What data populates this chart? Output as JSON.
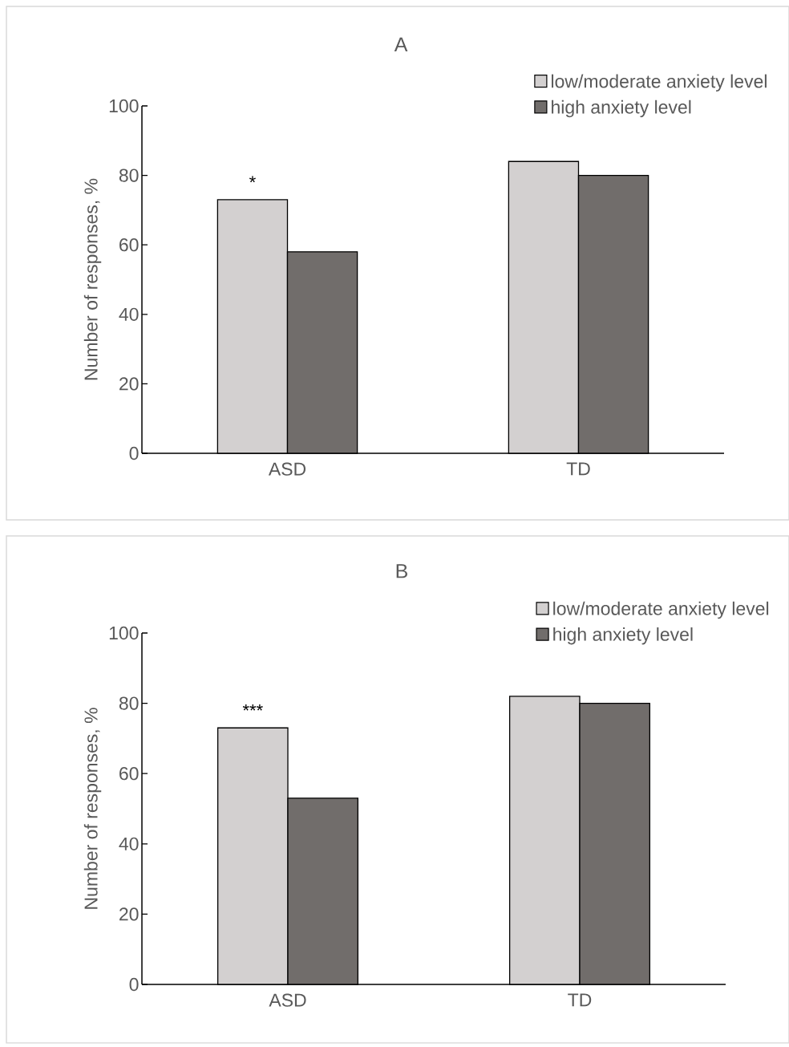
{
  "chart_data": [
    {
      "type": "bar",
      "title": "A",
      "ylabel": "Number of responses, %",
      "categories": [
        "ASD",
        "TD"
      ],
      "series": [
        {
          "name": "low/moderate anxiety level",
          "color": "#d3d0d0",
          "values": [
            73,
            84
          ]
        },
        {
          "name": "high anxiety level",
          "color": "#716d6b",
          "values": [
            58,
            80
          ]
        }
      ],
      "ylim": [
        0,
        100
      ],
      "yticks": [
        0,
        20,
        40,
        60,
        80,
        100
      ],
      "legend": "top right",
      "annotations": [
        {
          "text": "*",
          "x": "ASD",
          "y": 73
        }
      ]
    },
    {
      "type": "bar",
      "title": "B",
      "ylabel": "Number of responses, %",
      "categories": [
        "ASD",
        "TD"
      ],
      "series": [
        {
          "name": "low/moderate anxiety level",
          "color": "#d3d0d0",
          "values": [
            73,
            82
          ]
        },
        {
          "name": "high anxiety level",
          "color": "#716d6b",
          "values": [
            53,
            80
          ]
        }
      ],
      "ylim": [
        0,
        100
      ],
      "yticks": [
        0,
        20,
        40,
        60,
        80,
        100
      ],
      "legend": "top right",
      "annotations": [
        {
          "text": "***",
          "x": "ASD",
          "y": 73
        }
      ]
    }
  ]
}
